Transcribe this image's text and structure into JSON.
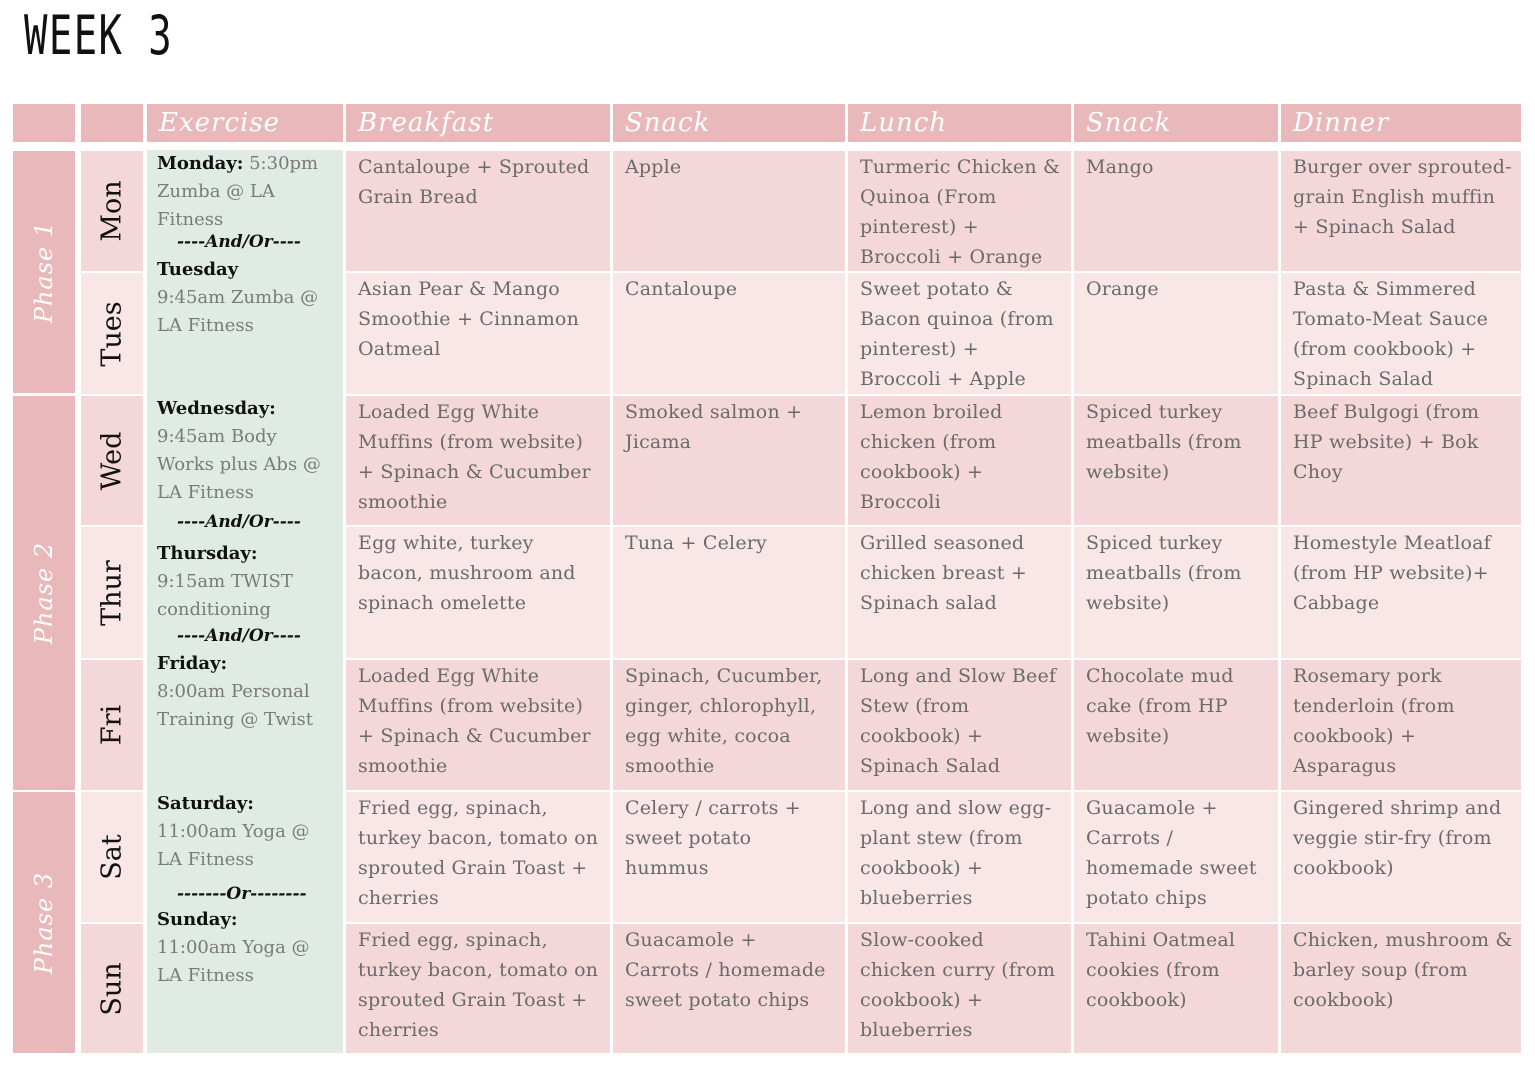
{
  "title": "WEEK 3",
  "headers": [
    "Exercise",
    "Breakfast",
    "Snack",
    "Lunch",
    "Snack",
    "Dinner"
  ],
  "phases": [
    "Phase 1",
    "Phase 2",
    "Phase 3"
  ],
  "days": [
    "Mon",
    "Tues",
    "Wed",
    "Thur",
    "Fri",
    "Sat",
    "Sun"
  ],
  "exercise": [
    {
      "type": "entry",
      "day": "Monday:",
      "text": "5:30pm Zumba @ LA Fitness",
      "inline": true
    },
    {
      "type": "sep",
      "text": "----And/Or----"
    },
    {
      "type": "entry",
      "day": "Tuesday",
      "text": "9:45am Zumba @ LA Fitness",
      "inline": false
    },
    {
      "type": "entry",
      "day": "Wednesday:",
      "text": "9:45am Body Works plus Abs @ LA Fitness",
      "inline": false
    },
    {
      "type": "sep",
      "text": "----And/Or----"
    },
    {
      "type": "entry",
      "day": "Thursday:",
      "text": "9:15am TWIST conditioning",
      "inline": false
    },
    {
      "type": "sep",
      "text": "----And/Or----"
    },
    {
      "type": "entry",
      "day": "Friday:",
      "text": "8:00am Personal Training @ Twist",
      "inline": false
    },
    {
      "type": "entry",
      "day": "Saturday:",
      "text": "11:00am Yoga @ LA Fitness",
      "inline": false
    },
    {
      "type": "sep",
      "text": "-------Or--------"
    },
    {
      "type": "entry",
      "day": "Sunday:",
      "text": "11:00am Yoga @ LA Fitness",
      "inline": false
    }
  ],
  "meals": [
    [
      "Cantaloupe + Sprouted Grain Bread",
      "Apple",
      "Turmeric Chicken & Quinoa (From pinterest) + Broccoli + Orange",
      "Mango",
      "Burger over sprouted-grain English muffin + Spinach Salad"
    ],
    [
      "Asian Pear & Mango Smoothie + Cinnamon Oatmeal",
      "Cantaloupe",
      "Sweet potato & Bacon quinoa (from pinterest) + Broccoli + Apple",
      "Orange",
      "Pasta & Simmered Tomato-Meat Sauce (from cookbook) + Spinach Salad"
    ],
    [
      "Loaded Egg White Muffins (from website) + Spinach & Cucumber smoothie",
      "Smoked salmon + Jicama",
      "Lemon broiled chicken (from cookbook) + Broccoli",
      "Spiced turkey meatballs (from website)",
      "Beef Bulgogi (from HP website) + Bok Choy"
    ],
    [
      "Egg white, turkey bacon, mushroom and spinach omelette",
      "Tuna + Celery",
      "Grilled seasoned chicken breast + Spinach salad",
      "Spiced turkey meatballs (from website)",
      "Homestyle Meatloaf (from HP website)+ Cabbage"
    ],
    [
      "Loaded Egg White Muffins (from website) + Spinach & Cucumber smoothie",
      "Spinach, Cucumber, ginger, chlorophyll, egg white, cocoa smoothie",
      "Long and Slow Beef Stew (from cookbook) + Spinach Salad",
      "Chocolate mud cake (from HP website)",
      "Rosemary pork tenderloin (from cookbook) + Asparagus"
    ],
    [
      "Fried egg, spinach, turkey bacon, tomato on sprouted Grain Toast + cherries",
      "Celery / carrots + sweet potato hummus",
      "Long and slow egg-plant stew (from cookbook) + blueberries",
      "Guacamole  + Carrots / homemade sweet potato chips",
      "Gingered shrimp and veggie stir-fry (from cookbook)"
    ],
    [
      "Fried egg, spinach, turkey bacon, tomato on sprouted Grain Toast + cherries",
      "Guacamole  + Carrots / homemade sweet potato chips",
      "Slow-cooked chicken curry (from cookbook) + blueberries",
      "Tahini Oatmeal cookies (from cookbook)",
      "Chicken, mushroom & barley soup (from cookbook)"
    ]
  ]
}
